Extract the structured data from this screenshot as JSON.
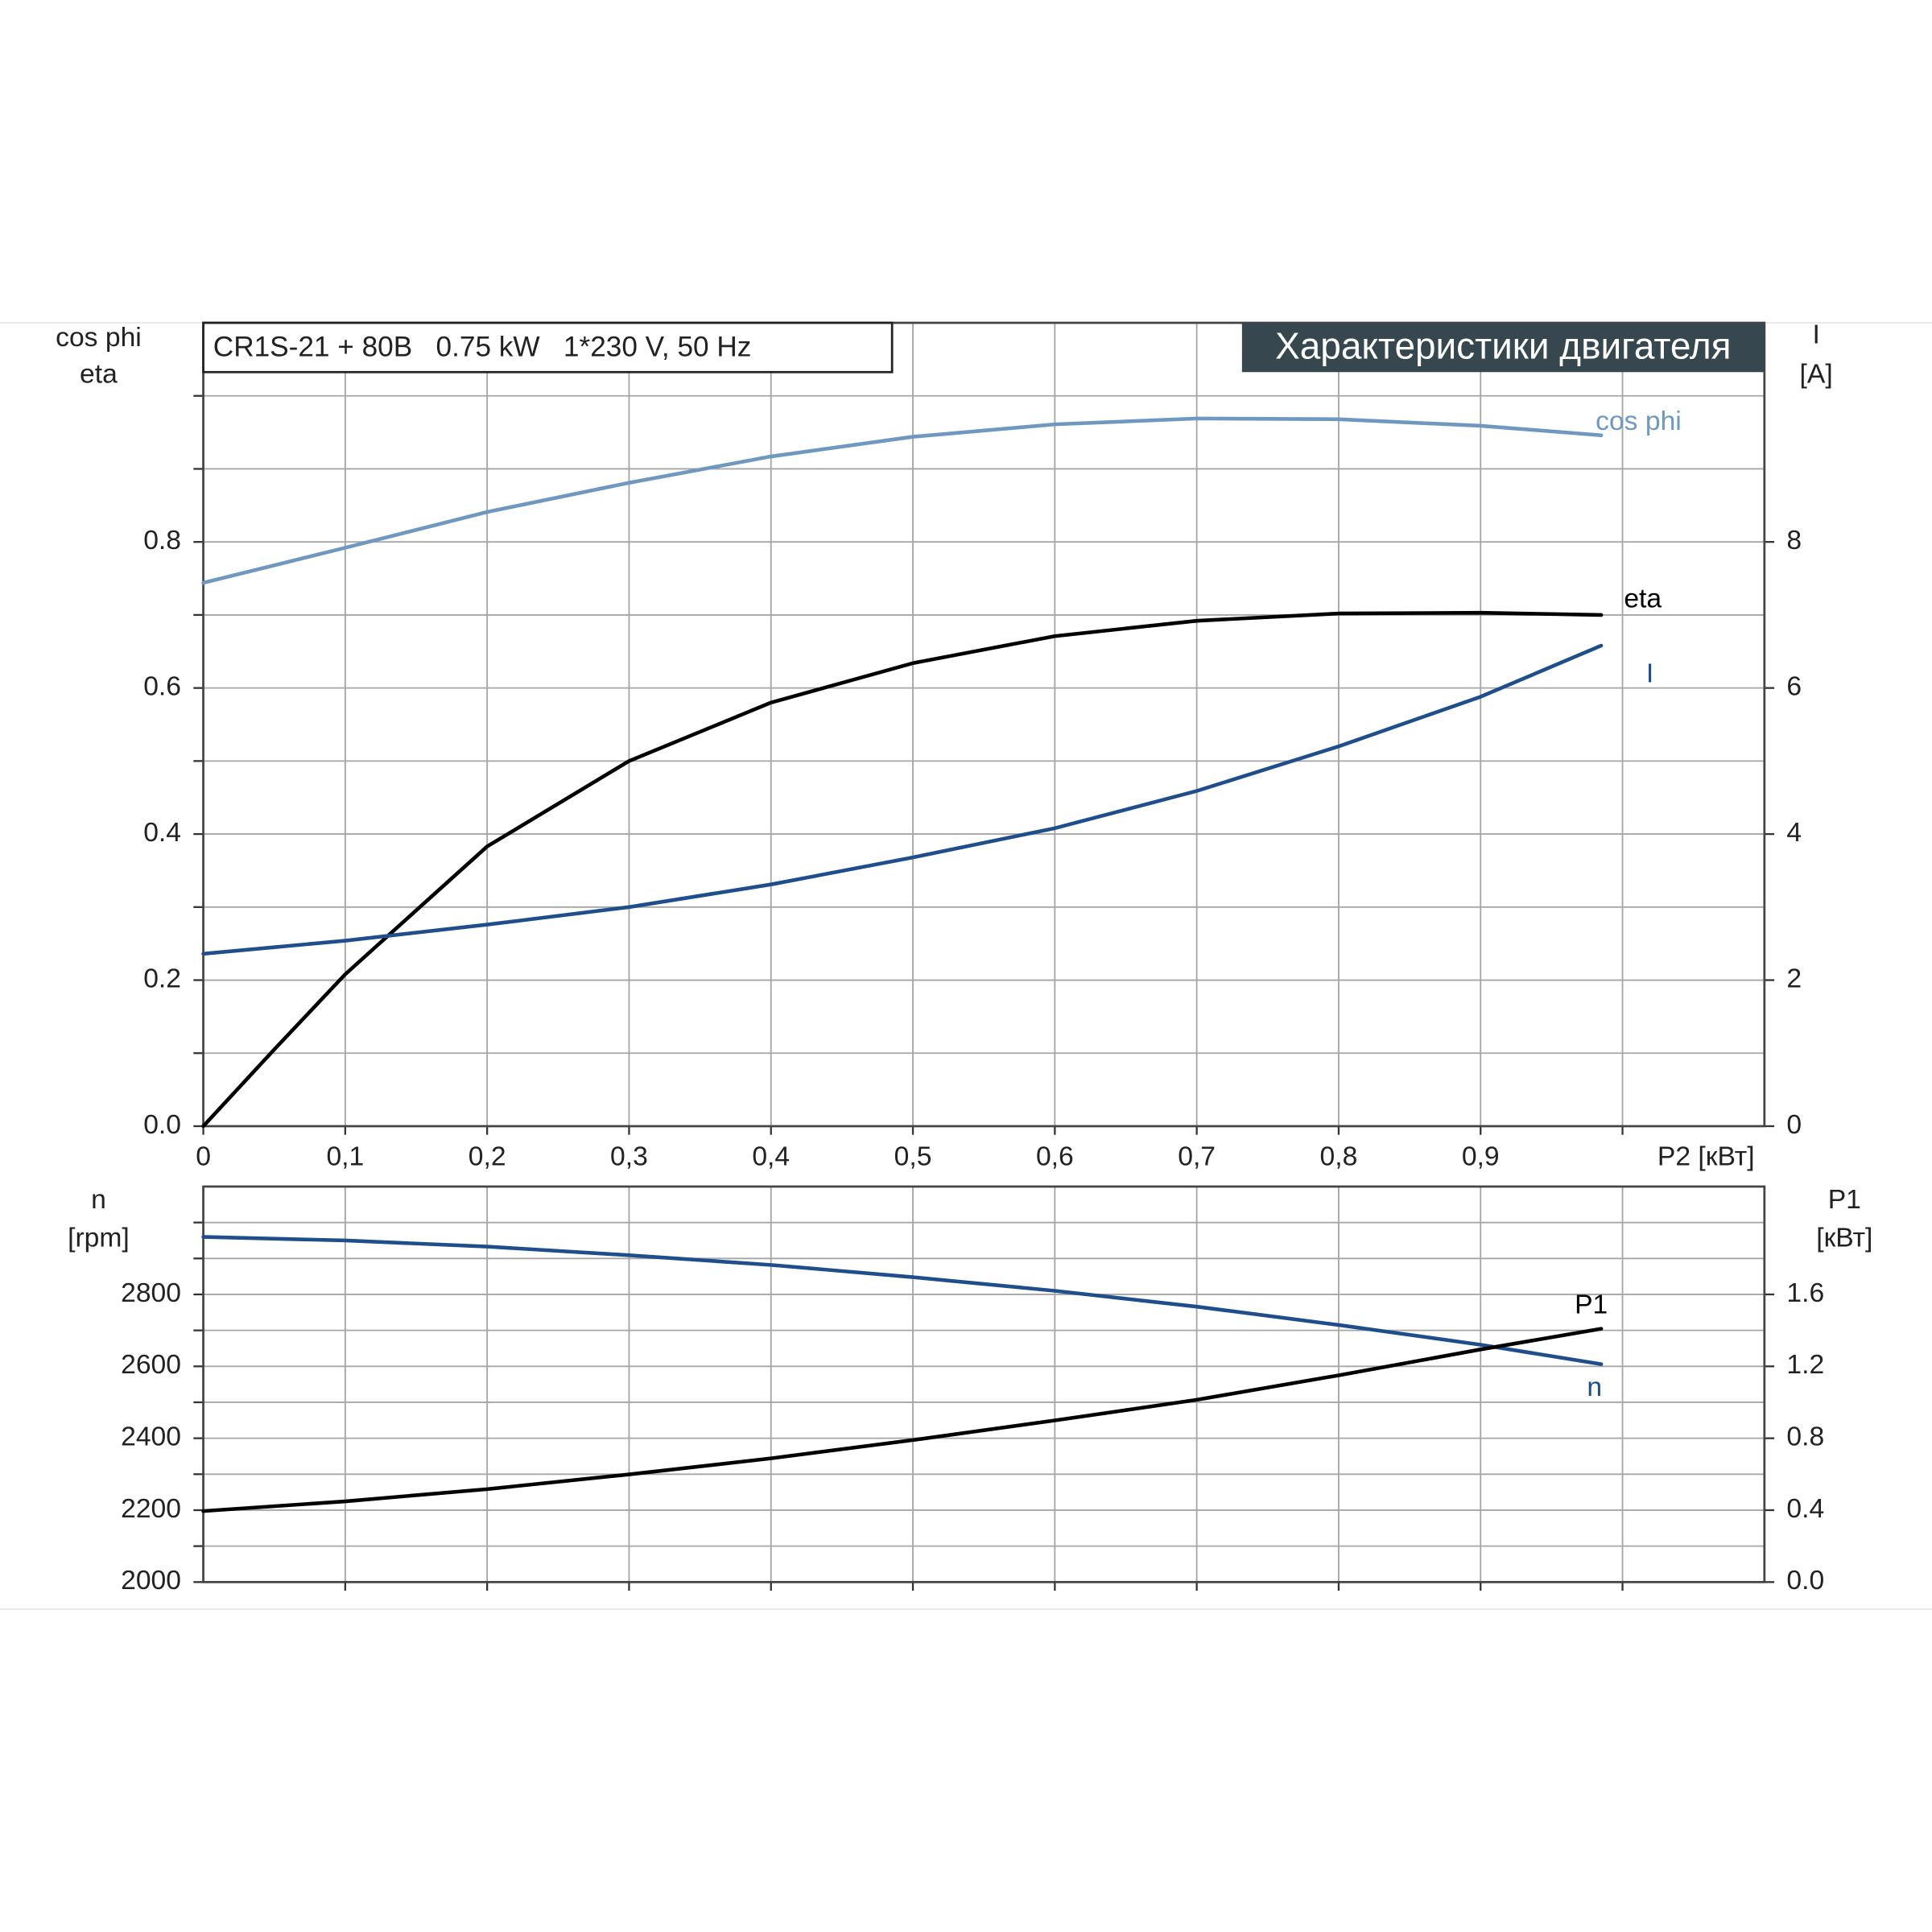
{
  "chart_data": [
    {
      "type": "line",
      "title": "Характеристики двигателя",
      "subtitle": "CR1S-21 + 80B   0.75 kW   1*230 V, 50 Hz",
      "xlabel": "P2 [кВт]",
      "ylabel": [
        "cos phi",
        "eta"
      ],
      "y2label": [
        "I",
        "[A]"
      ],
      "x": [
        0,
        0.05,
        0.1,
        0.2,
        0.3,
        0.4,
        0.5,
        0.6,
        0.7,
        0.8,
        0.9,
        0.985
      ],
      "xlim": [
        0,
        1.1
      ],
      "xticks": [
        0,
        {
          "value": 0.1,
          "label": "0,1"
        },
        {
          "value": 0.2,
          "label": "0,2"
        },
        {
          "value": 0.3,
          "label": "0,3"
        },
        {
          "value": 0.4,
          "label": "0,4"
        },
        {
          "value": 0.5,
          "label": "0,5"
        },
        {
          "value": 0.6,
          "label": "0,6"
        },
        {
          "value": 0.7,
          "label": "0,7"
        },
        {
          "value": 0.8,
          "label": "0,8"
        },
        {
          "value": 0.9,
          "label": "0,9"
        }
      ],
      "xminor": [
        1.0
      ],
      "ylim": [
        0,
        1.1
      ],
      "yticks": [
        {
          "value": 0,
          "label": "0.0"
        },
        0.2,
        0.4,
        0.6,
        0.8
      ],
      "yminor": [
        0.1,
        0.3,
        0.5,
        0.7,
        0.9,
        1.0
      ],
      "y2lim": [
        0,
        11
      ],
      "y2ticks": [
        0,
        2,
        4,
        6,
        8
      ],
      "grid": true,
      "series": [
        {
          "name": "cos phi",
          "color": "#6f98c0",
          "values": [
            0.744,
            0.768,
            0.792,
            0.841,
            0.881,
            0.917,
            0.944,
            0.961,
            0.969,
            0.968,
            0.959,
            0.946
          ]
        },
        {
          "name": "eta",
          "color": "#000000",
          "values": [
            0,
            0.105,
            0.208,
            0.383,
            0.5,
            0.58,
            0.634,
            0.671,
            0.692,
            0.702,
            0.703,
            0.7
          ]
        },
        {
          "name": "I",
          "color": "#1f4e8c",
          "axis": "y2",
          "values": [
            2.36,
            2.45,
            2.54,
            2.76,
            3.0,
            3.31,
            3.68,
            4.08,
            4.59,
            5.2,
            5.88,
            6.58
          ]
        }
      ]
    },
    {
      "type": "line",
      "ylabel": [
        "n",
        "[rpm]"
      ],
      "y2label": [
        "P1",
        "[кВт]"
      ],
      "x": [
        0,
        0.1,
        0.2,
        0.3,
        0.4,
        0.5,
        0.6,
        0.7,
        0.8,
        0.9,
        0.985
      ],
      "xlim": [
        0,
        1.1
      ],
      "xminor": [
        0.1,
        0.2,
        0.3,
        0.4,
        0.5,
        0.6,
        0.7,
        0.8,
        0.9,
        1.0
      ],
      "ylim": [
        2000,
        3100
      ],
      "yticks": [
        2000,
        2200,
        2400,
        2600,
        2800
      ],
      "yminor": [
        2100,
        2300,
        2500,
        2700,
        2900,
        3000
      ],
      "y2lim": [
        0,
        2.2
      ],
      "y2ticks": [
        {
          "value": 0,
          "label": "0.0"
        },
        0.4,
        0.8,
        1.2,
        1.6
      ],
      "grid": true,
      "series": [
        {
          "name": "n",
          "color": "#1f4e8c",
          "values": [
            2960,
            2950,
            2933,
            2909,
            2882,
            2848,
            2810,
            2766,
            2715,
            2660,
            2606
          ]
        },
        {
          "name": "P1",
          "color": "#000000",
          "axis": "y2",
          "values": [
            0.395,
            0.449,
            0.517,
            0.599,
            0.688,
            0.79,
            0.899,
            1.014,
            1.15,
            1.294,
            1.409
          ]
        }
      ]
    }
  ]
}
